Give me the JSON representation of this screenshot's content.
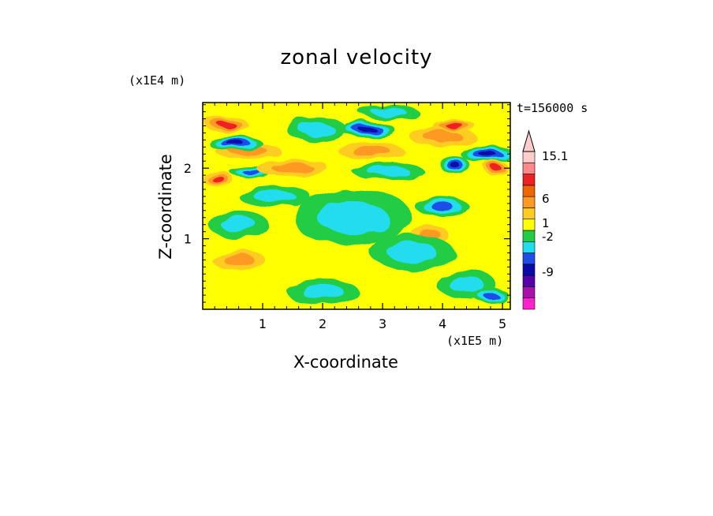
{
  "chart_data": {
    "type": "heatmap",
    "title": "zonal velocity",
    "xlabel": "X-coordinate",
    "ylabel": "Z-coordinate",
    "x_unit": "(x1E5 m)",
    "y_unit": "(x1E4 m)",
    "time_label": "t=156000 s",
    "x_ticks": [
      1,
      2,
      3,
      4,
      5
    ],
    "y_ticks": [
      1,
      2
    ],
    "xlim": [
      0,
      5.13
    ],
    "ylim": [
      0,
      2.93
    ],
    "colorbar": {
      "labels": [
        "15.1",
        "6",
        "1",
        "-2",
        "-9"
      ],
      "levels": [
        {
          "color": "#ff22cc"
        },
        {
          "color": "#aa11aa"
        },
        {
          "color": "#5500aa"
        },
        {
          "color": "#0a0aa8"
        },
        {
          "color": "#1f4de6"
        },
        {
          "color": "#22ddee"
        },
        {
          "color": "#22cc44"
        },
        {
          "color": "#ffff00"
        },
        {
          "color": "#ffcc22"
        },
        {
          "color": "#ff9922"
        },
        {
          "color": "#ee6600"
        },
        {
          "color": "#ee2222"
        },
        {
          "color": "#ff8888"
        },
        {
          "color": "#ffcccc"
        }
      ]
    },
    "blobs": [
      {
        "cx": 0.75,
        "cz": 2.25,
        "rx": 0.55,
        "rz": 0.11,
        "level": "pos_mid"
      },
      {
        "cx": 0.4,
        "cz": 2.62,
        "rx": 0.35,
        "rz": 0.12,
        "level": "pos_high"
      },
      {
        "cx": 0.55,
        "cz": 2.35,
        "rx": 0.45,
        "rz": 0.1,
        "level": "neg_high"
      },
      {
        "cx": 0.25,
        "cz": 1.85,
        "rx": 0.25,
        "rz": 0.12,
        "level": "pos_high"
      },
      {
        "cx": 0.8,
        "cz": 1.95,
        "rx": 0.35,
        "rz": 0.08,
        "level": "neg_mid"
      },
      {
        "cx": 0.6,
        "cz": 1.2,
        "rx": 0.5,
        "rz": 0.2,
        "level": "neg_low"
      },
      {
        "cx": 1.2,
        "cz": 1.6,
        "rx": 0.6,
        "rz": 0.15,
        "level": "neg_low"
      },
      {
        "cx": 1.5,
        "cz": 2.0,
        "rx": 0.6,
        "rz": 0.12,
        "level": "pos_mid"
      },
      {
        "cx": 1.9,
        "cz": 2.55,
        "rx": 0.5,
        "rz": 0.18,
        "level": "neg_low"
      },
      {
        "cx": 2.75,
        "cz": 2.55,
        "rx": 0.45,
        "rz": 0.12,
        "level": "neg_high"
      },
      {
        "cx": 2.8,
        "cz": 2.25,
        "rx": 0.55,
        "rz": 0.12,
        "level": "pos_mid"
      },
      {
        "cx": 3.1,
        "cz": 1.95,
        "rx": 0.6,
        "rz": 0.12,
        "level": "neg_low"
      },
      {
        "cx": 3.1,
        "cz": 2.8,
        "rx": 0.5,
        "rz": 0.1,
        "level": "neg_low"
      },
      {
        "cx": 4.0,
        "cz": 2.45,
        "rx": 0.55,
        "rz": 0.14,
        "level": "pos_mid"
      },
      {
        "cx": 4.2,
        "cz": 2.6,
        "rx": 0.35,
        "rz": 0.08,
        "level": "pos_high"
      },
      {
        "cx": 4.2,
        "cz": 2.05,
        "rx": 0.25,
        "rz": 0.12,
        "level": "neg_high"
      },
      {
        "cx": 4.75,
        "cz": 2.2,
        "rx": 0.45,
        "rz": 0.12,
        "level": "neg_high"
      },
      {
        "cx": 4.9,
        "cz": 2.0,
        "rx": 0.2,
        "rz": 0.1,
        "level": "pos_high"
      },
      {
        "cx": 4.0,
        "cz": 1.45,
        "rx": 0.45,
        "rz": 0.13,
        "level": "neg_mid"
      },
      {
        "cx": 3.8,
        "cz": 1.05,
        "rx": 0.3,
        "rz": 0.15,
        "level": "pos_mid"
      },
      {
        "cx": 0.6,
        "cz": 0.7,
        "rx": 0.45,
        "rz": 0.13,
        "level": "pos_mid"
      },
      {
        "cx": 2.0,
        "cz": 0.25,
        "rx": 0.6,
        "rz": 0.18,
        "level": "neg_low"
      },
      {
        "cx": 4.4,
        "cz": 0.35,
        "rx": 0.5,
        "rz": 0.2,
        "level": "neg_low"
      },
      {
        "cx": 4.8,
        "cz": 0.2,
        "rx": 0.3,
        "rz": 0.1,
        "level": "neg_mid"
      },
      {
        "cx": 2.5,
        "cz": 1.3,
        "rx": 1.0,
        "rz": 0.4,
        "level": "neg_low"
      },
      {
        "cx": 3.5,
        "cz": 0.8,
        "rx": 0.7,
        "rz": 0.25,
        "level": "neg_low"
      }
    ]
  }
}
